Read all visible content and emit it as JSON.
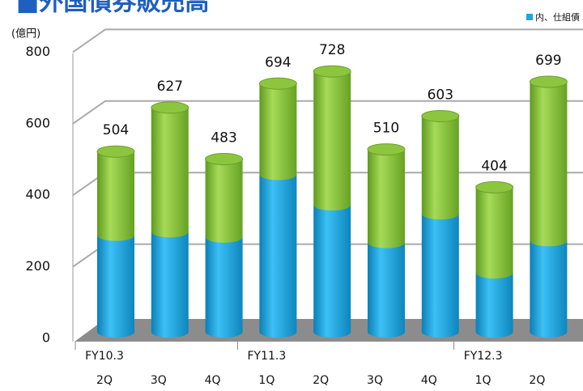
{
  "title": "■外国債券販売高",
  "chart_data": {
    "type": "bar",
    "stacked": true,
    "shape": "cylinder",
    "unit_label": "(億円)",
    "categories": [
      "2Q",
      "3Q",
      "4Q",
      "1Q",
      "2Q",
      "3Q",
      "4Q",
      "1Q",
      "2Q"
    ],
    "fiscal_labels": [
      "FY10.3",
      null,
      null,
      "FY11.3",
      null,
      null,
      null,
      "FY12.3",
      null
    ],
    "series": [
      {
        "name": "内、仕組債",
        "color": "#1aa6e4",
        "values": [
          270,
          280,
          265,
          440,
          355,
          250,
          330,
          165,
          255
        ]
      },
      {
        "color": "#8cc63e",
        "values": [
          234,
          347,
          218,
          254,
          373,
          260,
          273,
          239,
          444
        ]
      }
    ],
    "totals": [
      504,
      627,
      483,
      694,
      728,
      510,
      603,
      404,
      699
    ],
    "ylim": [
      0,
      800
    ],
    "yticks": [
      0,
      200,
      400,
      600,
      800
    ],
    "grid": true
  }
}
